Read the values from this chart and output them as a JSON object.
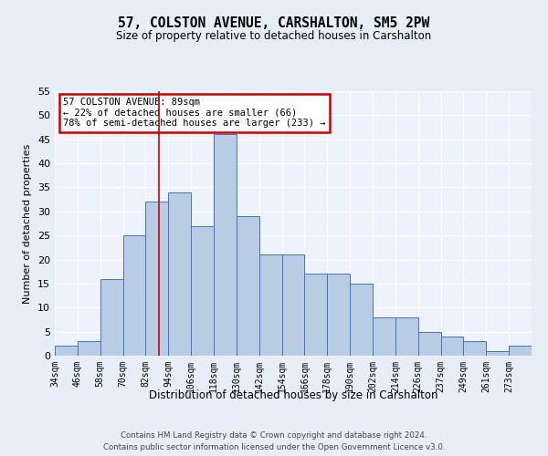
{
  "title": "57, COLSTON AVENUE, CARSHALTON, SM5 2PW",
  "subtitle": "Size of property relative to detached houses in Carshalton",
  "xlabel": "Distribution of detached houses by size in Carshalton",
  "ylabel": "Number of detached properties",
  "bins": [
    "34sqm",
    "46sqm",
    "58sqm",
    "70sqm",
    "82sqm",
    "94sqm",
    "106sqm",
    "118sqm",
    "130sqm",
    "142sqm",
    "154sqm",
    "166sqm",
    "178sqm",
    "190sqm",
    "202sqm",
    "214sqm",
    "226sqm",
    "237sqm",
    "249sqm",
    "261sqm",
    "273sqm"
  ],
  "values": [
    2,
    3,
    16,
    25,
    32,
    34,
    27,
    46,
    29,
    21,
    21,
    17,
    17,
    15,
    8,
    8,
    5,
    4,
    3,
    1,
    2
  ],
  "bar_color": "#b8cce4",
  "bar_edge_color": "#4472c4",
  "annotation_text": "57 COLSTON AVENUE: 89sqm\n← 22% of detached houses are smaller (66)\n78% of semi-detached houses are larger (233) →",
  "annotation_box_color": "#ffffff",
  "annotation_box_edge": "#cc0000",
  "vline_color": "#cc0000",
  "vline_x_bin": 4.58,
  "ylim": [
    0,
    55
  ],
  "yticks": [
    0,
    5,
    10,
    15,
    20,
    25,
    30,
    35,
    40,
    45,
    50,
    55
  ],
  "footer1": "Contains HM Land Registry data © Crown copyright and database right 2024.",
  "footer2": "Contains public sector information licensed under the Open Government Licence v3.0.",
  "bg_color": "#e8eef8",
  "plot_bg_color": "#eef2fc"
}
